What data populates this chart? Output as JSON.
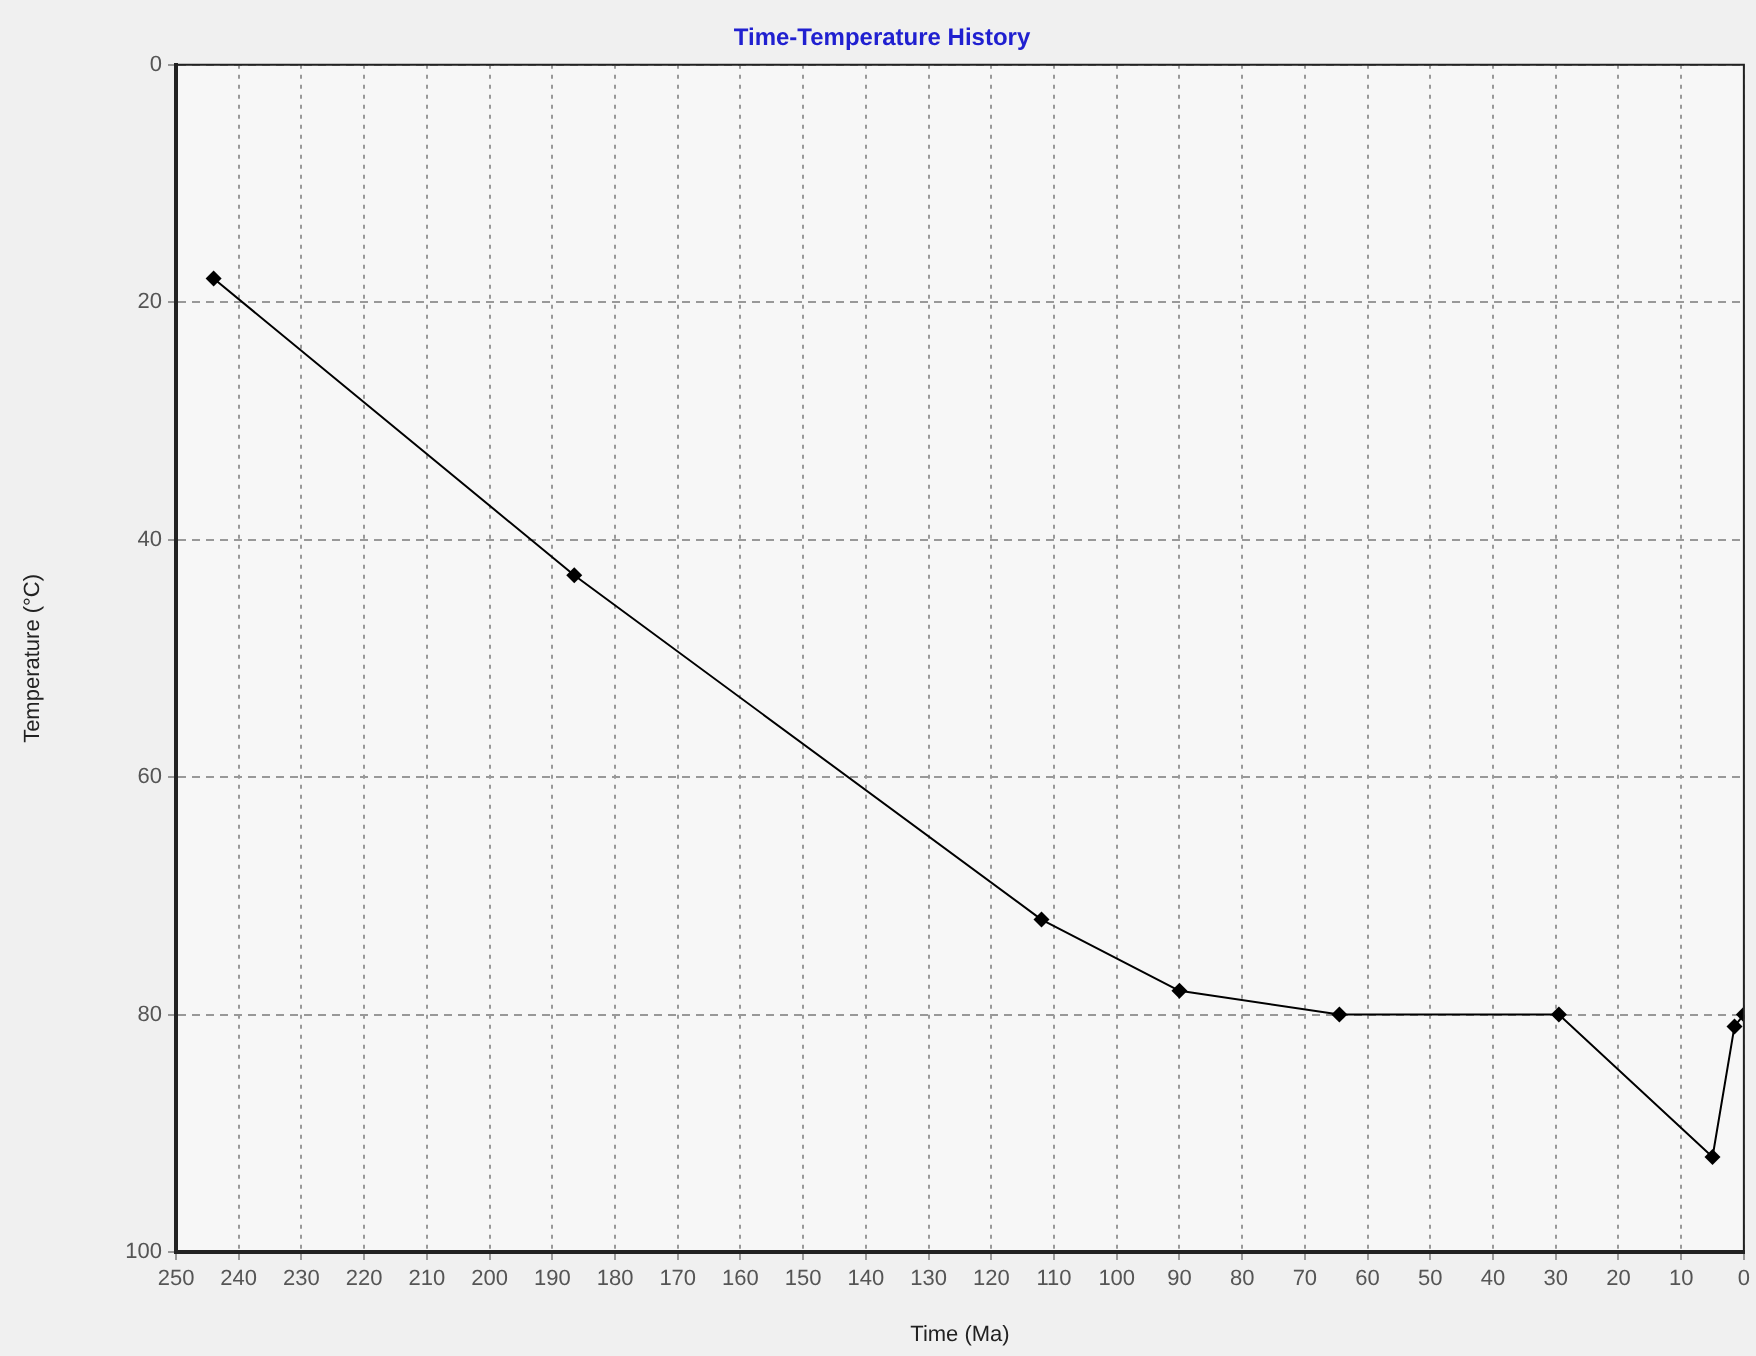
{
  "chart_data": {
    "type": "line",
    "title": "Time-Temperature History",
    "xlabel": "Time (Ma)",
    "ylabel": "Temperature (°C)",
    "x": [
      244,
      186.5,
      112,
      90,
      64.5,
      29.5,
      5,
      1.5,
      0
    ],
    "series": [
      {
        "color": "#000000",
        "values": [
          18,
          43,
          72,
          78,
          80,
          80,
          92,
          81,
          80
        ]
      }
    ],
    "xlim": [
      250,
      0
    ],
    "xticks": [
      250,
      240,
      230,
      220,
      210,
      200,
      190,
      180,
      170,
      160,
      150,
      140,
      130,
      120,
      110,
      100,
      90,
      80,
      70,
      60,
      50,
      40,
      30,
      20,
      10,
      0
    ],
    "ylim": [
      100,
      0
    ],
    "yticks": [
      0,
      20,
      40,
      60,
      80,
      100
    ],
    "grid": true,
    "legend": false,
    "marker": "diamond",
    "line_style": "solid"
  }
}
